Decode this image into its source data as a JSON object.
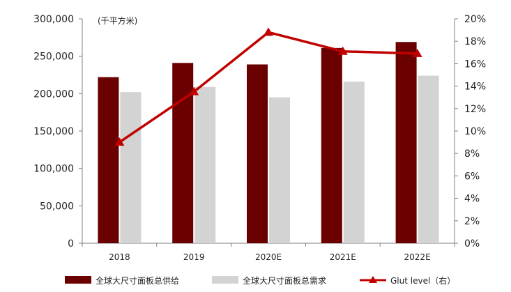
{
  "chart_data": {
    "type": "bar",
    "unit_label": "(千平方米)",
    "categories": [
      "2018",
      "2019",
      "2020E",
      "2021E",
      "2022E"
    ],
    "series": [
      {
        "name": "全球大尺寸面板总供给",
        "type": "bar",
        "axis": "left",
        "color": "#6b0000",
        "values": [
          222000,
          241000,
          239000,
          261000,
          269000
        ]
      },
      {
        "name": "全球大尺寸面板总需求",
        "type": "bar",
        "axis": "left",
        "color": "#d3d3d3",
        "values": [
          202000,
          209000,
          195000,
          216000,
          224000
        ]
      },
      {
        "name": "Glut level（右）",
        "type": "line",
        "axis": "right",
        "marker": "triangle",
        "color": "#c00000",
        "values": [
          9.0,
          13.5,
          18.8,
          17.1,
          16.9
        ]
      }
    ],
    "left_axis": {
      "min": 0,
      "max": 300000,
      "ticks": [
        "0",
        "50,000",
        "100,000",
        "150,000",
        "200,000",
        "250,000",
        "300,000"
      ]
    },
    "right_axis": {
      "min": 0,
      "max": 20,
      "ticks": [
        "0%",
        "2%",
        "4%",
        "6%",
        "8%",
        "10%",
        "12%",
        "14%",
        "16%",
        "18%",
        "20%"
      ]
    },
    "grid": false,
    "legend_position": "bottom"
  }
}
